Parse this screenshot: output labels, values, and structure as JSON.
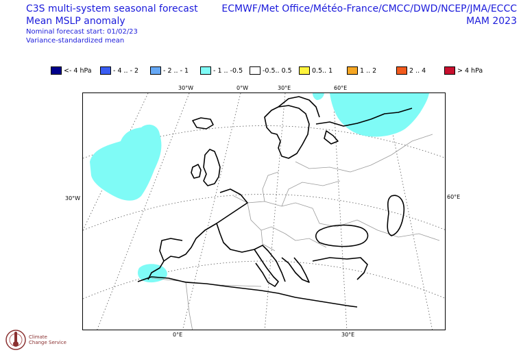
{
  "header": {
    "title_line1": "C3S multi-system seasonal forecast",
    "title_line2": "Mean MSLP anomaly",
    "subtitle_line1": "Nominal forecast start: 01/02/23",
    "subtitle_line2": "Variance-standardized mean",
    "centres": "ECMWF/Met Office/Météo-France/CMCC/DWD/NCEP/JMA/ECCC",
    "season": "MAM 2023"
  },
  "legend": [
    {
      "label": "<- 4 hPa",
      "color": "#00008b"
    },
    {
      "label": "- 4 .. - 2",
      "color": "#3a5df2"
    },
    {
      "label": "- 2 .. - 1",
      "color": "#66a8f5"
    },
    {
      "label": "- 1 .. -0.5",
      "color": "#7ffbf6"
    },
    {
      "label": "-0.5.. 0.5",
      "color": "#ffffff"
    },
    {
      "label": "0.5.. 1",
      "color": "#fff43d"
    },
    {
      "label": "1 .. 2",
      "color": "#f5a623"
    },
    {
      "label": "2 .. 4",
      "color": "#f25a1d"
    },
    {
      "label": "> 4 hPa",
      "color": "#c8102e"
    }
  ],
  "coords": {
    "top_30w": "30°W",
    "top_0w": "0°W",
    "top_30e": "30°E",
    "top_60e": "60°E",
    "left_30w": "30°W",
    "right_60e": "60°E",
    "bottom_0e": "0°E",
    "bottom_30e": "30°E"
  },
  "anomaly_color": "#7ffbf6",
  "logo": {
    "line1": "Climate",
    "line2": "Change Service"
  }
}
